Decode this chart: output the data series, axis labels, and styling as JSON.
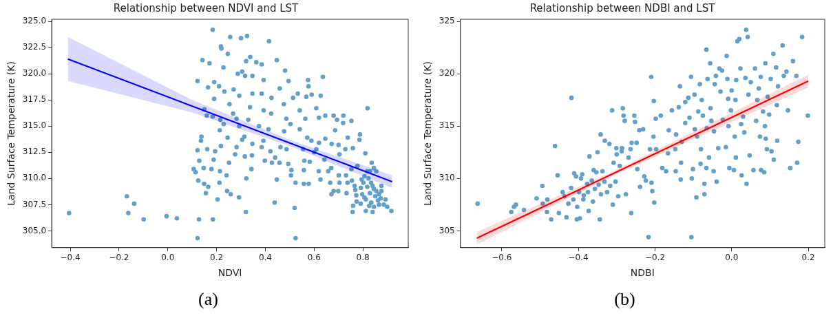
{
  "chart_data": [
    {
      "type": "scatter",
      "title": "Relationship between NDVI and LST",
      "xlabel": "NDVI",
      "ylabel": "Land Surface Temperature (K)",
      "annotations": [
        "(a)"
      ],
      "xlim": [
        -0.476,
        0.986
      ],
      "ylim": [
        303.4,
        325.2
      ],
      "xticks": [
        {
          "value": -0.4,
          "label": "−0.4"
        },
        {
          "value": -0.2,
          "label": "−0.2"
        },
        {
          "value": 0,
          "label": "0.0"
        },
        {
          "value": 0.2,
          "label": "0.2"
        },
        {
          "value": 0.4,
          "label": "0.4"
        },
        {
          "value": 0.6,
          "label": "0.6"
        },
        {
          "value": 0.8,
          "label": "0.8"
        }
      ],
      "yticks": [
        {
          "value": 305,
          "label": "305.0"
        },
        {
          "value": 307.5,
          "label": "307.5"
        },
        {
          "value": 310,
          "label": "310.0"
        },
        {
          "value": 312.5,
          "label": "312.5"
        },
        {
          "value": 315,
          "label": "315.0"
        },
        {
          "value": 317.5,
          "label": "317.5"
        },
        {
          "value": 320,
          "label": "320.0"
        },
        {
          "value": 322.5,
          "label": "322.5"
        },
        {
          "value": 325,
          "label": "325.0"
        }
      ],
      "grid": false,
      "legend": false,
      "series": [
        {
          "marker": "circle",
          "color": "#62a0ca",
          "x": [
            -0.405,
            -0.168,
            -0.138,
            -0.162,
            -0.099,
            -0.005,
            0.037,
            0.128,
            0.185,
            0.122,
            0.524,
            0.184,
            0.256,
            0.3,
            0.325,
            0.415,
            0.218,
            0.22,
            0.246,
            0.142,
            0.171,
            0.338,
            0.321,
            0.447,
            0.363,
            0.385,
            0.228,
            0.481,
            0.122,
            0.636,
            0.287,
            0.305,
            0.317,
            0.347,
            0.393,
            0.575,
            0.495,
            0.165,
            0.19,
            0.21,
            0.232,
            0.27,
            0.459,
            0.577,
            0.59,
            0.627,
            0.19,
            0.293,
            0.347,
            0.385,
            0.425,
            0.514,
            0.533,
            0.568,
            0.253,
            0.476,
            0.337,
            0.393,
            0.541,
            0.609,
            0.819,
            0.268,
            0.424,
            0.646,
            0.68,
            0.72,
            0.753,
            0.16,
            0.184,
            0.15,
            0.215,
            0.282,
            0.33,
            0.486,
            0.564,
            0.62,
            0.694,
            0.229,
            0.293,
            0.374,
            0.503,
            0.719,
            0.213,
            0.413,
            0.477,
            0.541,
            0.686,
            0.138,
            0.245,
            0.314,
            0.392,
            0.572,
            0.646,
            0.738,
            0.788,
            0.136,
            0.305,
            0.347,
            0.462,
            0.589,
            0.62,
            0.672,
            0.7,
            0.786,
            0.122,
            0.162,
            0.218,
            0.282,
            0.385,
            0.487,
            0.555,
            0.609,
            0.728,
            0.759,
            0.194,
            0.421,
            0.6,
            0.81,
            0.276,
            0.704,
            0.316,
            0.345,
            0.44,
            0.188,
            0.642,
            0.129,
            0.398,
            0.427,
            0.56,
            0.582,
            0.251,
            0.836,
            0.458,
            0.494,
            0.106,
            0.147,
            0.179,
            0.343,
            0.507,
            0.558,
            0.67,
            0.753,
            0.778,
            0.114,
            0.214,
            0.619,
            0.658,
            0.817,
            0.241,
            0.505,
            0.701,
            0.731,
            0.322,
            0.447,
            0.626,
            0.755,
            0.795,
            0.125,
            0.524,
            0.212,
            0.666,
            0.149,
            0.558,
            0.578,
            0.704,
            0.737,
            0.876,
            0.166,
            0.766,
            0.792,
            0.243,
            0.68,
            0.699,
            0.769,
            0.258,
            0.156,
            0.671,
            0.733,
            0.773,
            0.292,
            0.806,
            0.204,
            0.774,
            0.438,
            0.791,
            0.76,
            0.52,
            0.758,
            0.32,
            0.812,
            0.84,
            0.917,
            0.806,
            0.823,
            0.834,
            0.818,
            0.845,
            0.829,
            0.851,
            0.812,
            0.862,
            0.873,
            0.834,
            0.893,
            0.845,
            0.866,
            0.886,
            0.9,
            0.826,
            0.855,
            0.866,
            0.797,
            0.876,
            0.84,
            0.802,
            0.829,
            0.855,
            0.845
          ],
          "values": [
            306.7,
            308.3,
            307.6,
            306.7,
            306.1,
            306.4,
            306.2,
            306.1,
            306.1,
            304.3,
            304.3,
            324.2,
            323.5,
            323.4,
            323.6,
            323.1,
            322.6,
            322.4,
            321.9,
            321.3,
            321.0,
            321.6,
            321.2,
            321.3,
            321.1,
            320.9,
            320.6,
            320.3,
            319.3,
            319.7,
            320.0,
            320.2,
            319.8,
            319.8,
            319.4,
            319.4,
            319.3,
            318.7,
            319.2,
            318.8,
            318.3,
            318.5,
            318.6,
            318.8,
            318.0,
            317.9,
            317.6,
            317.9,
            318.1,
            318.1,
            317.7,
            317.7,
            318.1,
            317.8,
            317.1,
            317.1,
            316.8,
            316.5,
            316.5,
            316.7,
            316.7,
            316.2,
            316.2,
            316.0,
            316.0,
            316.0,
            315.5,
            316.0,
            315.9,
            316.6,
            315.6,
            315.7,
            315.6,
            315.7,
            315.7,
            315.8,
            315.6,
            315.2,
            315.0,
            315.0,
            315.2,
            315.3,
            314.6,
            314.7,
            314.5,
            314.7,
            314.6,
            314.0,
            313.9,
            314.0,
            313.6,
            313.9,
            313.8,
            313.9,
            314.2,
            313.6,
            313.7,
            313.3,
            313.0,
            313.6,
            313.4,
            313.3,
            313.2,
            313.7,
            312.7,
            312.8,
            313.1,
            313.0,
            313.0,
            312.8,
            312.8,
            312.8,
            312.8,
            312.9,
            312.6,
            312.6,
            312.5,
            312.4,
            312.3,
            312.3,
            312.1,
            312.2,
            312.0,
            311.8,
            311.8,
            311.7,
            311.7,
            311.5,
            311.7,
            311.6,
            311.5,
            311.5,
            311.5,
            311.4,
            310.9,
            311.0,
            310.9,
            310.9,
            310.8,
            310.8,
            311.0,
            310.9,
            311.2,
            310.6,
            310.7,
            310.7,
            310.7,
            310.7,
            310.3,
            310.3,
            310.3,
            310.3,
            310.0,
            309.9,
            309.9,
            309.8,
            309.9,
            309.8,
            309.6,
            309.6,
            309.6,
            309.5,
            309.5,
            309.5,
            309.6,
            309.6,
            309.3,
            309.2,
            309.3,
            309.1,
            308.8,
            308.8,
            308.8,
            308.9,
            308.5,
            308.6,
            308.5,
            308.6,
            308.4,
            308.2,
            308.2,
            308.0,
            307.8,
            307.7,
            307.6,
            307.4,
            307.2,
            306.8,
            306.8,
            306.9,
            306.8,
            306.9,
            310.2,
            310.0,
            309.6,
            309.2,
            309.0,
            308.6,
            308.3,
            308.0,
            307.9,
            308.1,
            307.7,
            308.0,
            307.3,
            307.5,
            307.5,
            307.3,
            307.4,
            308.8,
            308.5,
            308.5,
            308.8,
            309.3,
            309.6,
            310.7,
            310.7,
            311.0
          ]
        },
        {
          "type": "line",
          "marker": "none",
          "color": "#0000ff",
          "x": [
            -0.41,
            0.1,
            0.5,
            0.92
          ],
          "values": [
            321.4,
            316.91,
            313.39,
            309.7
          ],
          "lower": [
            319.3,
            316.3,
            313.1,
            309.1
          ],
          "upper": [
            323.5,
            317.5,
            313.7,
            310.3
          ]
        }
      ]
    },
    {
      "type": "scatter",
      "title": "Relationship between NDBI and LST",
      "xlabel": "NDBI",
      "ylabel": "Land Surface Temperature (K)",
      "annotations": [
        "(b)"
      ],
      "xlim": [
        -0.708,
        0.243
      ],
      "ylim": [
        303.4,
        325.2
      ],
      "xticks": [
        {
          "value": -0.6,
          "label": "−0.6"
        },
        {
          "value": -0.4,
          "label": "−0.4"
        },
        {
          "value": -0.2,
          "label": "−0.2"
        },
        {
          "value": 0,
          "label": "0.0"
        },
        {
          "value": 0.2,
          "label": "0.2"
        }
      ],
      "yticks": [
        305,
        310,
        315,
        320,
        325
      ],
      "grid": false,
      "legend": false,
      "series": [
        {
          "marker": "circle",
          "color": "#62a0ca",
          "x": [
            -0.663,
            -0.575,
            -0.568,
            -0.563,
            -0.542,
            -0.509,
            -0.494,
            -0.493,
            -0.482,
            -0.481,
            -0.471,
            -0.461,
            -0.454,
            -0.451,
            -0.441,
            -0.436,
            -0.431,
            -0.426,
            -0.419,
            -0.418,
            -0.413,
            -0.411,
            -0.406,
            -0.404,
            -0.403,
            -0.398,
            -0.396,
            -0.393,
            -0.39,
            -0.387,
            -0.386,
            -0.377,
            -0.375,
            -0.373,
            -0.371,
            -0.365,
            -0.362,
            -0.36,
            -0.357,
            -0.353,
            -0.35,
            -0.347,
            -0.344,
            -0.342,
            -0.341,
            -0.337,
            -0.332,
            -0.331,
            -0.325,
            -0.319,
            -0.317,
            -0.312,
            -0.31,
            -0.308,
            -0.303,
            -0.301,
            -0.3,
            -0.296,
            -0.292,
            -0.287,
            -0.286,
            -0.284,
            -0.282,
            -0.279,
            -0.276,
            -0.269,
            -0.264,
            -0.262,
            -0.261,
            -0.254,
            -0.252,
            -0.248,
            -0.246,
            -0.241,
            -0.239,
            -0.231,
            -0.228,
            -0.224,
            -0.217,
            -0.213,
            -0.21,
            -0.209,
            -0.207,
            -0.204,
            -0.203,
            -0.202,
            -0.198,
            -0.197,
            -0.185,
            -0.181,
            -0.171,
            -0.166,
            -0.164,
            -0.156,
            -0.147,
            -0.146,
            -0.145,
            -0.138,
            -0.135,
            -0.133,
            -0.132,
            -0.13,
            -0.121,
            -0.121,
            -0.113,
            -0.11,
            -0.106,
            -0.105,
            -0.104,
            -0.101,
            -0.097,
            -0.096,
            -0.092,
            -0.09,
            -0.087,
            -0.083,
            -0.081,
            -0.08,
            -0.078,
            -0.075,
            -0.071,
            -0.071,
            -0.066,
            -0.066,
            -0.065,
            -0.063,
            -0.059,
            -0.056,
            -0.055,
            -0.053,
            -0.047,
            -0.046,
            -0.044,
            -0.041,
            -0.039,
            -0.035,
            -0.032,
            -0.029,
            -0.025,
            -0.023,
            -0.015,
            -0.013,
            -0.011,
            -0.009,
            -0.008,
            -0.006,
            -0.002,
            0.0,
            0.006,
            0.008,
            0.01,
            0.011,
            0.012,
            0.015,
            0.02,
            0.023,
            0.025,
            0.026,
            0.03,
            0.033,
            0.036,
            0.038,
            0.039,
            0.042,
            0.044,
            0.047,
            0.05,
            0.057,
            0.061,
            0.064,
            0.067,
            0.071,
            0.074,
            0.076,
            0.077,
            0.082,
            0.085,
            0.087,
            0.088,
            0.089,
            0.092,
            0.094,
            0.098,
            0.102,
            0.104,
            0.109,
            0.11,
            0.116,
            0.118,
            0.119,
            0.121,
            0.133,
            0.136,
            0.143,
            0.147,
            0.153,
            0.16,
            0.171,
            0.174,
            0.169,
            0.184,
            0.199
          ],
          "values": [
            307.6,
            306.8,
            307.3,
            307.5,
            307.0,
            308.1,
            309.3,
            307.6,
            306.8,
            308.0,
            306.1,
            313.1,
            310.3,
            306.7,
            308.7,
            308.3,
            306.3,
            307.6,
            309.1,
            317.7,
            308.0,
            310.5,
            310.2,
            306.1,
            307.3,
            308.7,
            306.2,
            310.0,
            310.4,
            308.0,
            308.4,
            309.5,
            308.7,
            306.9,
            312.1,
            309.8,
            307.8,
            310.8,
            309.0,
            310.6,
            312.5,
            309.4,
            306.1,
            314.2,
            308.5,
            310.7,
            309.7,
            313.6,
            308.7,
            313.3,
            309.3,
            316.5,
            307.5,
            311.5,
            309.7,
            312.9,
            312.3,
            308.3,
            311.2,
            312.6,
            312.9,
            316.7,
            316.0,
            315.5,
            308.5,
            312.0,
            312.8,
            306.7,
            313.4,
            316.0,
            315.4,
            313.4,
            310.9,
            314.6,
            309.2,
            314.7,
            310.2,
            309.8,
            304.4,
            312.8,
            319.7,
            309.6,
            308.8,
            314.0,
            317.4,
            307.7,
            315.7,
            312.8,
            316.0,
            311.0,
            310.7,
            312.4,
            314.6,
            316.5,
            312.8,
            310.7,
            314.2,
            316.8,
            318.8,
            309.9,
            311.5,
            313.5,
            315.3,
            317.3,
            317.7,
            315.8,
            319.7,
            304.4,
            310.0,
            310.9,
            318.0,
            314.7,
            308.2,
            314.0,
            316.4,
            319.0,
            311.4,
            312.8,
            317.5,
            316.0,
            309.5,
            308.5,
            322.3,
            311.0,
            314.8,
            319.5,
            312.0,
            321.0,
            316.7,
            315.5,
            310.7,
            314.5,
            319.0,
            319.8,
            309.7,
            312.9,
            320.5,
            318.3,
            320.3,
            315.6,
            313.0,
            321.7,
            319.5,
            317.6,
            315.0,
            311.0,
            316.5,
            318.4,
            310.8,
            314.0,
            317.5,
            312.0,
            319.4,
            323.1,
            323.3,
            320.5,
            315.2,
            310.3,
            315.9,
            314.4,
            319.6,
            324.2,
            309.5,
            323.5,
            318.0,
            312.2,
            319.2,
            310.8,
            320.5,
            315.5,
            317.5,
            318.6,
            314.0,
            319.7,
            310.8,
            316.4,
            310.6,
            315.0,
            321.0,
            313.8,
            312.8,
            317.8,
            316.1,
            319.5,
            312.6,
            321.9,
            311.8,
            320.6,
            317.0,
            313.6,
            318.8,
            322.7,
            319.8,
            320.2,
            316.5,
            311.0,
            321.2,
            311.5,
            313.5,
            319.8,
            323.5,
            316.0
          ]
        },
        {
          "type": "line",
          "marker": "none",
          "color": "#ff0000",
          "x": [
            -0.665,
            -0.3,
            0.2
          ],
          "values": [
            304.3,
            310.63,
            319.3
          ],
          "lower": [
            303.7,
            310.43,
            318.7
          ],
          "upper": [
            304.9,
            310.83,
            319.9
          ]
        }
      ]
    }
  ]
}
